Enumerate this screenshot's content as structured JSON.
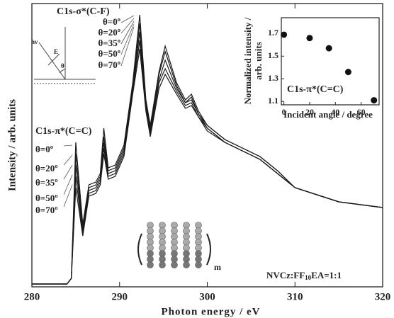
{
  "chart_data": [
    {
      "type": "line",
      "xlabel": "Photon energy / eV",
      "ylabel": "Intensity / arb. units",
      "x": [
        280,
        284,
        284.5,
        285,
        285.8,
        286.5,
        287.3,
        287.8,
        288.2,
        288.7,
        289.5,
        290.5,
        291.5,
        292.3,
        293,
        293.5,
        294.5,
        295.2,
        296.5,
        297.5,
        298.2,
        299,
        300,
        302,
        304,
        306,
        308,
        310,
        315,
        320
      ],
      "xlim": [
        280,
        320
      ],
      "xticks": [
        280,
        290,
        300,
        310,
        320
      ],
      "ylim": [
        0,
        100
      ],
      "color": "#1a1a1a",
      "series": [
        {
          "name": "θ=0º",
          "values": [
            1,
            1,
            3,
            51,
            22,
            36,
            37,
            40,
            56,
            42,
            43,
            50,
            72,
            96,
            66,
            57,
            76,
            85,
            72,
            66,
            68,
            62,
            57,
            52,
            49,
            46,
            41,
            35,
            30,
            28
          ]
        },
        {
          "name": "θ=20º",
          "values": [
            1,
            1,
            3,
            47,
            21,
            35,
            36,
            39,
            53,
            41,
            42,
            49,
            71,
            93,
            65,
            56,
            75,
            83,
            71,
            65,
            67,
            61,
            57,
            52,
            49,
            46,
            41,
            35,
            30,
            28
          ]
        },
        {
          "name": "θ=35º",
          "values": [
            1,
            1,
            3,
            43,
            20,
            34,
            35,
            38,
            51,
            40,
            41,
            48,
            70,
            90,
            64,
            55,
            73,
            80,
            70,
            65,
            66,
            61,
            56,
            51,
            48,
            45,
            40,
            35,
            30,
            28
          ]
        },
        {
          "name": "θ=50º",
          "values": [
            1,
            1,
            3,
            39,
            19,
            33,
            34,
            37,
            49,
            39,
            40,
            47,
            69,
            87,
            63,
            54,
            72,
            77,
            69,
            64,
            65,
            60,
            56,
            51,
            48,
            45,
            40,
            35,
            30,
            28
          ]
        },
        {
          "name": "θ=70º",
          "values": [
            1,
            1,
            3,
            35,
            18,
            32,
            33,
            36,
            47,
            38,
            39,
            46,
            68,
            84,
            62,
            53,
            70,
            75,
            68,
            63,
            64,
            60,
            55,
            51,
            48,
            45,
            40,
            35,
            30,
            28
          ]
        }
      ],
      "sigma_label": "C1s-σ*(C-F)",
      "pi_label": "C1s-π*(C=C)",
      "sample_label": [
        "NVCz:FF",
        "10",
        "EA=1:1"
      ],
      "polymer_index": "m",
      "geometry_labels": [
        "hν",
        "E",
        "θ"
      ]
    },
    {
      "type": "scatter",
      "title": "C1s-π*(C=C)",
      "xlabel": "Incident angle / degree",
      "ylabel": [
        "Normalized intensity /",
        "arb. units"
      ],
      "x": [
        0,
        20,
        35,
        50,
        70
      ],
      "values": [
        1.69,
        1.66,
        1.57,
        1.36,
        1.11
      ],
      "xlim": [
        -2,
        74
      ],
      "xticks": [
        0,
        20,
        40,
        60
      ],
      "ylim": [
        1.07,
        1.84
      ],
      "yticks": [
        1.1,
        1.3,
        1.5,
        1.7
      ],
      "color": "#111111"
    }
  ]
}
